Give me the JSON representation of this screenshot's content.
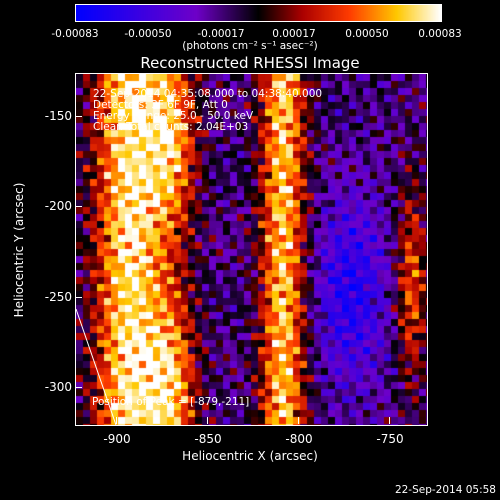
{
  "colorbar": {
    "ticks": [
      "-0.00083",
      "-0.00050",
      "-0.00017",
      "0.00017",
      "0.00050",
      "0.00083"
    ],
    "units": "(photons cm⁻² s⁻¹ asec⁻²)"
  },
  "title": "Reconstructed RHESSI Image",
  "info": {
    "line1": "22-Sep-2014 04:35:08.000 to 04:38:40.000",
    "line2": "Detectors: 3F 6F 9F, Att 0",
    "line3": "Energy Range: 25.0 - 50.0 keV",
    "line4": "Clean    Total counts: 2.04E+03"
  },
  "peak_label": "Position of Peak = [-879,-211]",
  "axes": {
    "xlabel": "Heliocentric X (arcsec)",
    "ylabel": "Heliocentric Y (arcsec)",
    "xticks": [
      "-900",
      "-850",
      "-800",
      "-750"
    ],
    "yticks": [
      "-150",
      "-200",
      "-250",
      "-300"
    ]
  },
  "timestamp": "22-Sep-2014 05:58",
  "colors": {
    "background": "#000000",
    "axis": "#ffffff"
  }
}
